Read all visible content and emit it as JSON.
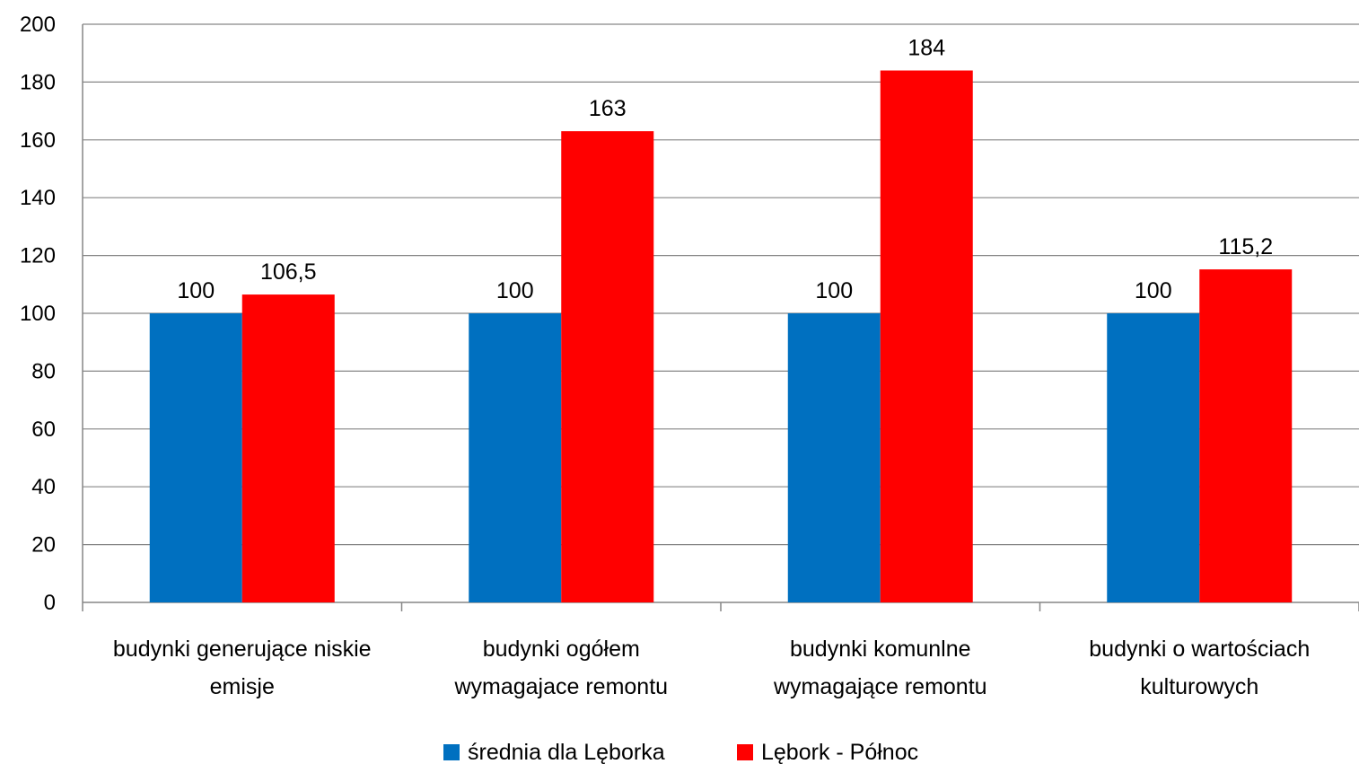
{
  "chart_data": {
    "type": "bar",
    "title": "",
    "xlabel": "",
    "ylabel": "",
    "ylim": [
      0,
      200
    ],
    "yticks": [
      0,
      20,
      40,
      60,
      80,
      100,
      120,
      140,
      160,
      180,
      200
    ],
    "grid": true,
    "legend_position": "bottom",
    "categories": [
      [
        "budynki generujące niskie",
        "emisje"
      ],
      [
        "budynki ogółem",
        "wymagajace remontu"
      ],
      [
        "budynki komunlne",
        "wymagające remontu"
      ],
      [
        "budynki o wartościach",
        "kulturowych"
      ]
    ],
    "series": [
      {
        "name": "średnia dla Lęborka",
        "color": "#0070C0",
        "values": [
          100,
          100,
          100,
          100
        ],
        "labels": [
          "100",
          "100",
          "100",
          "100"
        ]
      },
      {
        "name": "Lębork - Północ",
        "color": "#FF0000",
        "values": [
          106.5,
          163,
          184,
          115.2
        ],
        "labels": [
          "106,5",
          "163",
          "184",
          "115,2"
        ]
      }
    ]
  }
}
